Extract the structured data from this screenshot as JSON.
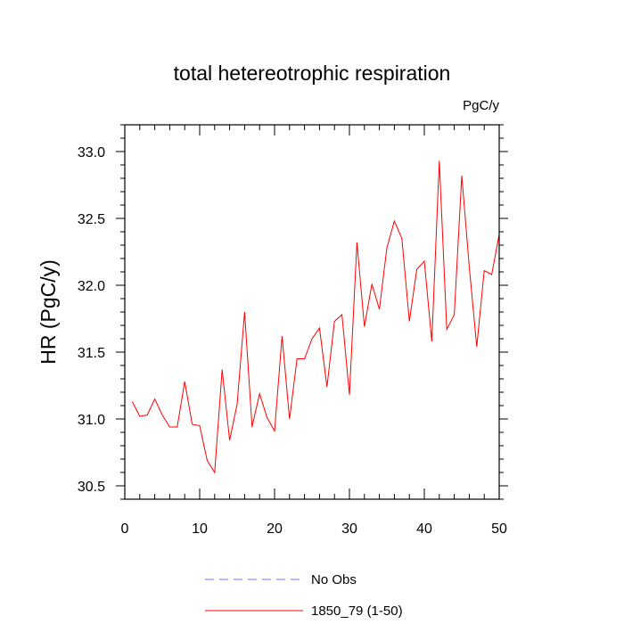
{
  "chart_data": {
    "type": "line",
    "title": "total hetereotrophic respiration",
    "units_label": "PgC/y",
    "ylabel": "HR  (PgC/y)",
    "xlabel": "",
    "xlim": [
      0,
      50
    ],
    "ylim": [
      30.4,
      33.2
    ],
    "xticks": [
      0,
      10,
      20,
      30,
      40,
      50
    ],
    "xtick_labels": [
      "0",
      "10",
      "20",
      "30",
      "40",
      "50"
    ],
    "yticks": [
      30.5,
      31.0,
      31.5,
      32.0,
      32.5,
      33.0
    ],
    "ytick_labels": [
      "30.5",
      "31.0",
      "31.5",
      "32.0",
      "32.5",
      "33.0"
    ],
    "grid": false,
    "legend_position": "bottom",
    "series": [
      {
        "name": "No Obs",
        "color": "#7777ff",
        "dashed": true,
        "x": [],
        "values": []
      },
      {
        "name": "1850_79 (1-50)",
        "color": "#ff0000",
        "dashed": false,
        "x": [
          1,
          2,
          3,
          4,
          5,
          6,
          7,
          8,
          9,
          10,
          11,
          12,
          13,
          14,
          15,
          16,
          17,
          18,
          19,
          20,
          21,
          22,
          23,
          24,
          25,
          26,
          27,
          28,
          29,
          30,
          31,
          32,
          33,
          34,
          35,
          36,
          37,
          38,
          39,
          40,
          41,
          42,
          43,
          44,
          45,
          46,
          47,
          48,
          49,
          50
        ],
        "values": [
          31.13,
          31.02,
          31.03,
          31.15,
          31.03,
          30.94,
          30.94,
          31.28,
          30.96,
          30.95,
          30.69,
          30.6,
          31.37,
          30.84,
          31.11,
          31.8,
          30.94,
          31.19,
          31.01,
          30.91,
          31.62,
          31.0,
          31.45,
          31.45,
          31.6,
          31.68,
          31.24,
          31.73,
          31.78,
          31.18,
          32.32,
          31.69,
          32.01,
          31.82,
          32.28,
          32.48,
          32.35,
          31.73,
          32.12,
          32.18,
          31.58,
          32.93,
          31.67,
          31.78,
          32.82,
          32.14,
          31.54,
          32.11,
          32.08,
          32.38
        ]
      }
    ]
  }
}
